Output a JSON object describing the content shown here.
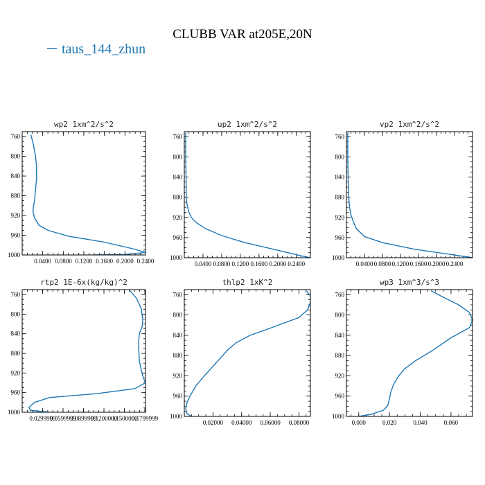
{
  "figure": {
    "title": "CLUBB VAR at205E,20N",
    "legend": "taus_144_zhun",
    "series_color": "#1f77b4"
  },
  "chart_data": [
    {
      "type": "line",
      "title": "wp2  1xm^2/s^2",
      "xlim": [
        0.0,
        0.24
      ],
      "ylim": [
        1000,
        750
      ],
      "xticks": [
        0.04,
        0.08,
        0.12,
        0.16,
        0.2,
        0.24
      ],
      "xticklabels": [
        "0.0400",
        "0.0800",
        "0.1200",
        "0.1600",
        "0.2000",
        "0.2400"
      ],
      "yticks": [
        760,
        800,
        840,
        880,
        920,
        960,
        1000
      ],
      "series": [
        {
          "x": [
            0.017,
            0.022,
            0.026,
            0.028,
            0.028,
            0.026,
            0.024,
            0.022,
            0.021,
            0.024,
            0.033,
            0.05,
            0.09,
            0.16,
            0.218,
            0.24,
            0.2,
            0.14
          ],
          "y": [
            756,
            777,
            800,
            822,
            845,
            868,
            890,
            901,
            912,
            925,
            940,
            950,
            962,
            974,
            988,
            995,
            999,
            1000
          ]
        }
      ]
    },
    {
      "type": "line",
      "title": "up2  1xm^2/s^2",
      "xlim": [
        0.0,
        0.27
      ],
      "ylim": [
        1000,
        750
      ],
      "xticks": [
        0.04,
        0.08,
        0.12,
        0.16,
        0.2,
        0.24
      ],
      "xticklabels": [
        "0.0400",
        "0.0800",
        "0.1200",
        "0.1600",
        "0.2000",
        "0.2400"
      ],
      "yticks": [
        760,
        800,
        840,
        880,
        920,
        960,
        1000
      ],
      "series": [
        {
          "x": [
            0.003,
            0.003,
            0.004,
            0.004,
            0.006,
            0.009,
            0.015,
            0.025,
            0.045,
            0.08,
            0.13,
            0.19,
            0.245,
            0.27
          ],
          "y": [
            752,
            800,
            850,
            880,
            895,
            908,
            920,
            930,
            942,
            956,
            970,
            983,
            995,
            1000
          ]
        }
      ]
    },
    {
      "type": "line",
      "title": "vp2  1xm^2/s^2",
      "xlim": [
        0.0,
        0.28
      ],
      "ylim": [
        1000,
        750
      ],
      "xticks": [
        0.04,
        0.08,
        0.12,
        0.16,
        0.2,
        0.24
      ],
      "xticklabels": [
        "0.0400",
        "0.0800",
        "0.1200",
        "0.1600",
        "0.2000",
        "0.2400"
      ],
      "yticks": [
        760,
        800,
        840,
        880,
        920,
        960,
        1000
      ],
      "series": [
        {
          "x": [
            0.003,
            0.003,
            0.004,
            0.005,
            0.007,
            0.01,
            0.015,
            0.022,
            0.04,
            0.08,
            0.15,
            0.22,
            0.265,
            0.28
          ],
          "y": [
            752,
            800,
            850,
            880,
            900,
            915,
            928,
            942,
            958,
            970,
            983,
            992,
            998,
            1000
          ]
        }
      ]
    },
    {
      "type": "line",
      "title": "rtp2  1E-6x(kg/kg)^2",
      "xlim": [
        0.0,
        0.181
      ],
      "ylim": [
        1000,
        750
      ],
      "xticks": [
        0.03,
        0.06,
        0.09,
        0.12,
        0.15,
        0.18
      ],
      "xticklabels": [
        "0.0299999",
        "0.0599999",
        "0.0899999",
        "0.1200000",
        "0.1500000",
        "0.1799999"
      ],
      "yticks": [
        760,
        800,
        840,
        880,
        920,
        960,
        1000
      ],
      "series": [
        {
          "x": [
            0.158,
            0.168,
            0.175,
            0.177,
            0.176,
            0.172,
            0.171,
            0.171,
            0.172,
            0.175,
            0.178,
            0.181,
            0.165,
            0.11,
            0.04,
            0.018,
            0.01,
            0.012,
            0.04
          ],
          "y": [
            752,
            768,
            790,
            812,
            826,
            840,
            855,
            870,
            895,
            915,
            930,
            940,
            952,
            962,
            970,
            980,
            990,
            996,
            1000
          ]
        }
      ]
    },
    {
      "type": "line",
      "title": "thlp2  1xK^2",
      "xlim": [
        0.0,
        0.088
      ],
      "ylim": [
        1000,
        750
      ],
      "xticks": [
        0.02,
        0.04,
        0.06,
        0.08
      ],
      "xticklabels": [
        "0.02000",
        "0.04000",
        "0.06000",
        "0.08000"
      ],
      "yticks": [
        760,
        800,
        840,
        880,
        920,
        960,
        1000
      ],
      "series": [
        {
          "x": [
            0.085,
            0.088,
            0.088,
            0.086,
            0.08,
            0.06,
            0.046,
            0.036,
            0.03,
            0.022,
            0.014,
            0.008,
            0.004,
            0.002,
            0.001,
            0.002,
            0.005
          ],
          "y": [
            752,
            762,
            775,
            790,
            805,
            826,
            840,
            855,
            870,
            895,
            920,
            940,
            960,
            972,
            985,
            995,
            1000
          ]
        }
      ]
    },
    {
      "type": "line",
      "title": "wp3  1xm^3/s^3",
      "xlim": [
        -0.008,
        0.074
      ],
      "ylim": [
        1000,
        750
      ],
      "xticks": [
        0.0,
        0.02,
        0.04,
        0.06
      ],
      "xticklabels": [
        "0.000",
        "0.020",
        "0.040",
        "0.060"
      ],
      "yticks": [
        760,
        800,
        840,
        880,
        920,
        960,
        1000
      ],
      "series": [
        {
          "x": [
            0.047,
            0.055,
            0.065,
            0.072,
            0.074,
            0.072,
            0.06,
            0.048,
            0.037,
            0.03,
            0.026,
            0.023,
            0.021,
            0.02,
            0.019,
            0.016,
            0.008,
            0.0
          ],
          "y": [
            752,
            765,
            780,
            795,
            810,
            825,
            845,
            870,
            890,
            906,
            920,
            935,
            950,
            965,
            978,
            988,
            996,
            1000
          ]
        }
      ]
    }
  ]
}
